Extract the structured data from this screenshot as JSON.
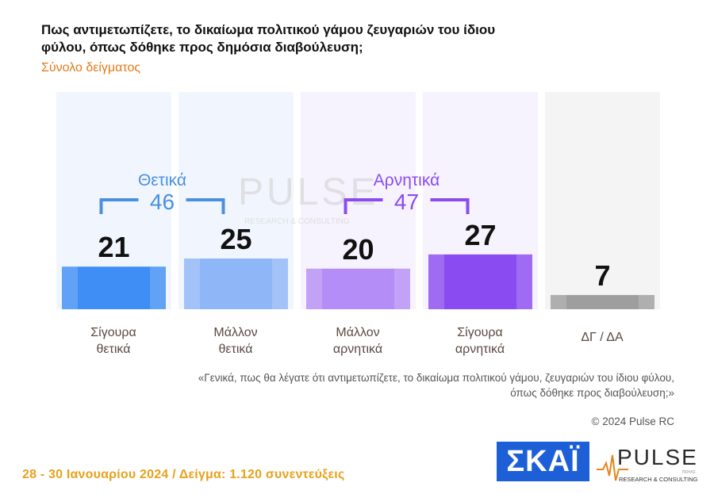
{
  "title": "Πως αντιμετωπίζετε, το δικαίωμα πολιτικού γάμου ζευγαριών του ίδιου φύλου, όπως δόθηκε προς δημόσια διαβούλευση;",
  "subtitle": "Σύνολο δείγματος",
  "chart_data": {
    "type": "bar",
    "categories": [
      "Σίγουρα θετικά",
      "Μάλλον θετικά",
      "Μάλλον αρνητικά",
      "Σίγουρα αρνητικά",
      "ΔΓ / ΔΑ"
    ],
    "values": [
      21,
      25,
      20,
      27,
      7
    ],
    "colors": [
      "#3f8ef5",
      "#8fb6f7",
      "#b48ef6",
      "#8a4bf0",
      "#9e9e9e"
    ],
    "ylim": [
      0,
      100
    ],
    "groups": [
      {
        "label": "Θετικά",
        "total": "46",
        "members": [
          0,
          1
        ],
        "color": "#4a90e2"
      },
      {
        "label": "Αρνητικά",
        "total": "47",
        "members": [
          2,
          3
        ],
        "color": "#8a4bf0"
      }
    ]
  },
  "categories_display": [
    {
      "line1": "Σίγουρα",
      "line2": "θετικά"
    },
    {
      "line1": "Μάλλον",
      "line2": "θετικά"
    },
    {
      "line1": "Μάλλον",
      "line2": "αρνητικά"
    },
    {
      "line1": "Σίγουρα",
      "line2": "αρνητικά"
    },
    {
      "line1": "ΔΓ / ΔΑ",
      "line2": ""
    }
  ],
  "quote": {
    "line1": "«Γενικά, πως θα λέγατε ότι αντιμετωπίζετε, το δικαίωμα πολιτικού γάμου, ζευγαριών του ίδιου φύλου,",
    "line2": "όπως δόθηκε προς διαβούλευση;»"
  },
  "copyright": "© 2024 Pulse RC",
  "footer": "28 - 30 Ιανουαρίου 2024 / Δείγμα: 1.120 συνεντεύξεις",
  "logos": {
    "skai": "ΣΚΑΪ",
    "pulse": "PULSE",
    "pulse_tagline": "RESEARCH & CONSULTING",
    "pulse_small": "ΠΟΥΛΣ",
    "watermark": "PULSE",
    "watermark_tagline": "RESEARCH & CONSULTING"
  }
}
